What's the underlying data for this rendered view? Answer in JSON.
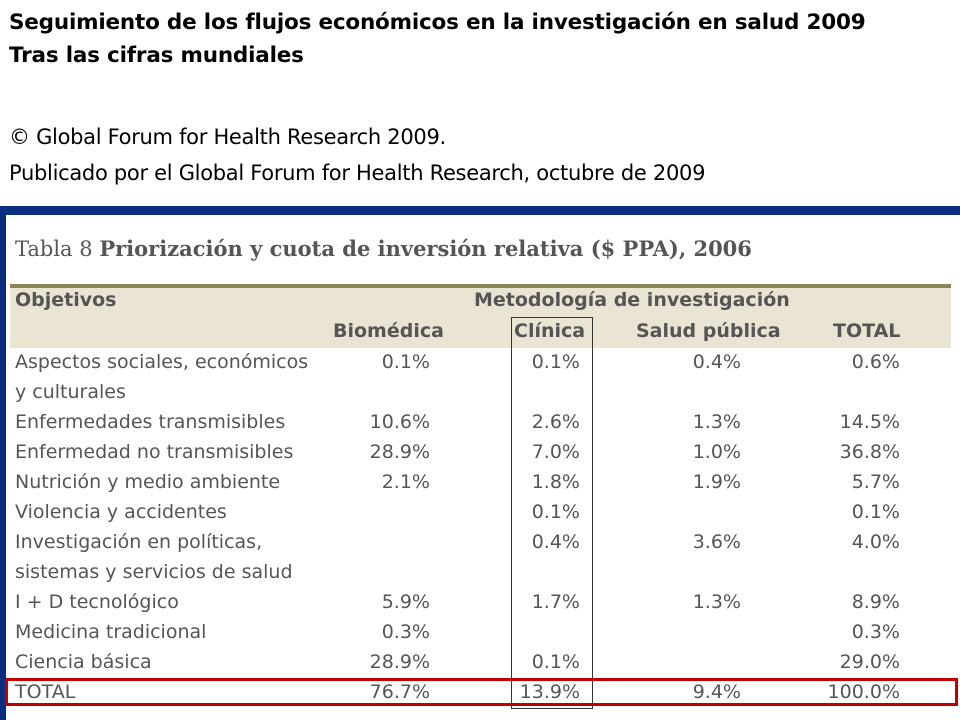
{
  "header": {
    "title_line1": "Seguimiento de los flujos económicos en la investigación en salud 2009",
    "title_line2": "Tras las cifras mundiales",
    "copyright": "© Global Forum for Health Research 2009.",
    "published": "Publicado por el Global Forum for Health Research, octubre de 2009"
  },
  "table": {
    "caption_prefix": "Tabla 8",
    "caption_title": "Priorización y cuota de inversión relativa ($ PPA), 2006",
    "col_objetivos": "Objetivos",
    "col_group": "Metodología de investigación",
    "columns": [
      "Biomédica",
      "Clínica",
      "Salud pública",
      "TOTAL"
    ],
    "rows": [
      {
        "label": [
          "Aspectos sociales, económicos",
          "y culturales"
        ],
        "values": [
          "0.1%",
          "0.1%",
          "0.4%",
          "0.6%"
        ]
      },
      {
        "label": [
          "Enfermedades transmisibles"
        ],
        "values": [
          "10.6%",
          "2.6%",
          "1.3%",
          "14.5%"
        ]
      },
      {
        "label": [
          "Enfermedad no transmisibles"
        ],
        "values": [
          "28.9%",
          "7.0%",
          "1.0%",
          "36.8%"
        ]
      },
      {
        "label": [
          "Nutrición y medio ambiente"
        ],
        "values": [
          "2.1%",
          "1.8%",
          "1.9%",
          "5.7%"
        ]
      },
      {
        "label": [
          "Violencia y accidentes"
        ],
        "values": [
          "",
          "0.1%",
          "",
          "0.1%"
        ]
      },
      {
        "label": [
          "Investigación en políticas,",
          "sistemas y servicios de salud"
        ],
        "values": [
          "",
          "0.4%",
          "3.6%",
          "4.0%"
        ]
      },
      {
        "label": [
          "I + D tecnológico"
        ],
        "values": [
          "5.9%",
          "1.7%",
          "1.3%",
          "8.9%"
        ]
      },
      {
        "label": [
          "Medicina tradicional"
        ],
        "values": [
          "0.3%",
          "",
          "",
          "0.3%"
        ]
      },
      {
        "label": [
          "Ciencia básica"
        ],
        "values": [
          "28.9%",
          "0.1%",
          "",
          "29.0%"
        ]
      },
      {
        "label": [
          "TOTAL"
        ],
        "values": [
          "76.7%",
          "13.9%",
          "9.4%",
          "100.0%"
        ]
      }
    ]
  },
  "colors": {
    "frame": "#0b2d7d",
    "header_band": "#e9e5d2",
    "header_rule": "#8b8557",
    "highlight": "#c00000"
  }
}
